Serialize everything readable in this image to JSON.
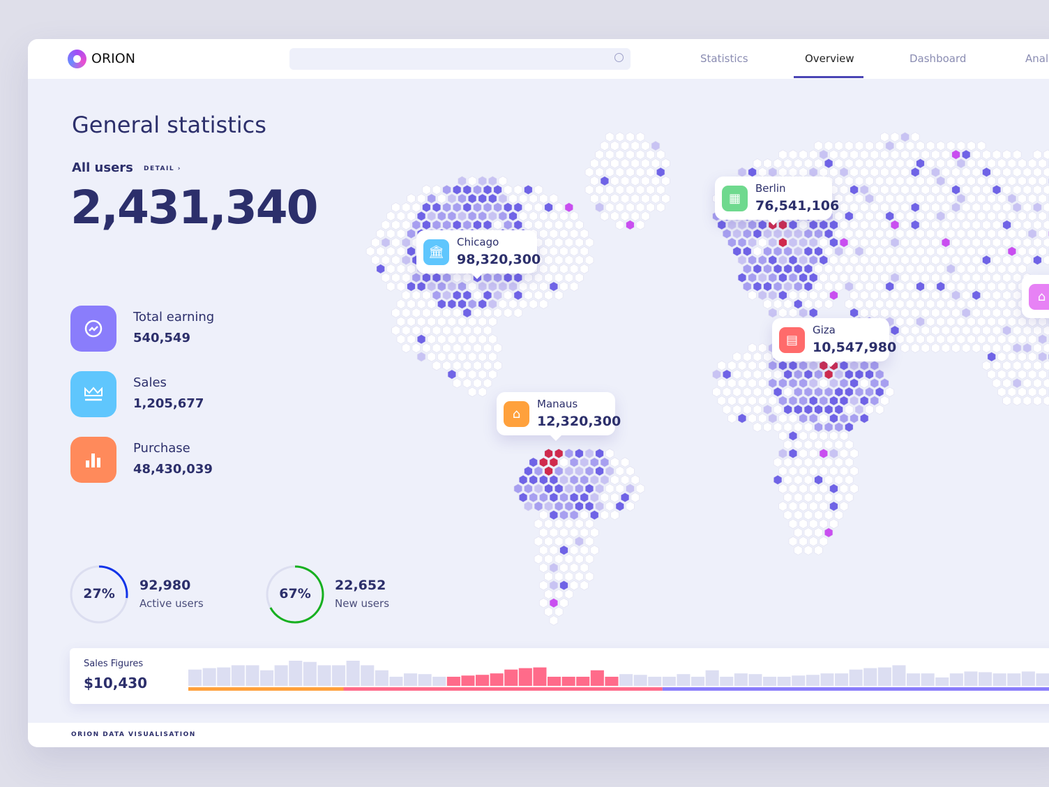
{
  "header": {
    "brand": "ORION",
    "search_placeholder": "",
    "nav": [
      "Statistics",
      "Overview",
      "Dashboard",
      "Analytics"
    ],
    "active_nav": "Overview"
  },
  "main": {
    "title": "General statistics",
    "all_users_label": "All users",
    "detail_label": "DETAIL ›",
    "all_users_value": "2,431,340",
    "stats": [
      {
        "label": "Total earning",
        "value": "540,549",
        "icon": "trending-up-icon",
        "color": "#8a7dfb"
      },
      {
        "label": "Sales",
        "value": "1,205,677",
        "icon": "crown-icon",
        "color": "#5fc6fd"
      },
      {
        "label": "Purchase",
        "value": "48,430,039",
        "icon": "bar-chart-icon",
        "color": "#ff8a5b"
      }
    ],
    "rings": [
      {
        "percent_label": "27%",
        "percent": 27,
        "value": "92,980",
        "label": "Active users",
        "color": "#1234e8"
      },
      {
        "percent_label": "67%",
        "percent": 67,
        "value": "22,652",
        "label": "New users",
        "color": "#17b020"
      }
    ]
  },
  "map": {
    "locations": [
      {
        "city": "Chicago",
        "value": "98,320,300",
        "icon": "bank-icon",
        "color": "#5fc6fd"
      },
      {
        "city": "Berlin",
        "value": "76,541,106",
        "icon": "building-icon",
        "color": "#6fd98e"
      },
      {
        "city": "Giza",
        "value": "10,547,980",
        "icon": "office-icon",
        "color": "#ff6b6b"
      },
      {
        "city": "Manaus",
        "value": "12,320,300",
        "icon": "factory-icon",
        "color": "#ffa13c"
      },
      {
        "city": "",
        "value": "",
        "icon": "store-icon",
        "color": "#e782f5"
      }
    ],
    "colors": {
      "land": "#ffffff",
      "light": "#c8c3f3",
      "mid": "#a79ff0",
      "dark": "#6f63e6",
      "hot": "#d02a4d",
      "pink": "#c94ef0"
    }
  },
  "sales": {
    "label": "Sales Figures",
    "value": "$10,430",
    "chart_data": {
      "type": "bar",
      "values": [
        68,
        74,
        77,
        86,
        86,
        65,
        86,
        105,
        100,
        86,
        86,
        105,
        86,
        65,
        38,
        52,
        49,
        38,
        38,
        43,
        46,
        52,
        68,
        74,
        77,
        38,
        38,
        38,
        65,
        38,
        49,
        46,
        38,
        38,
        49,
        38,
        65,
        38,
        52,
        49,
        38,
        38,
        43,
        46,
        52,
        52,
        68,
        74,
        77,
        86,
        52,
        52,
        35,
        52,
        60,
        57,
        52,
        52,
        60,
        52
      ],
      "highlight_range": [
        18,
        29
      ],
      "bar_color": "#dcdef2",
      "highlight_color": "#ff6b8a",
      "timeline_segments": [
        {
          "fraction": 0.18,
          "color": "#ffa13c"
        },
        {
          "fraction": 0.37,
          "color": "#ff6b8a"
        },
        {
          "fraction": 0.45,
          "color": "#8a7dfb"
        }
      ]
    }
  },
  "footer": {
    "text": "ORION DATA VISUALISATION"
  }
}
